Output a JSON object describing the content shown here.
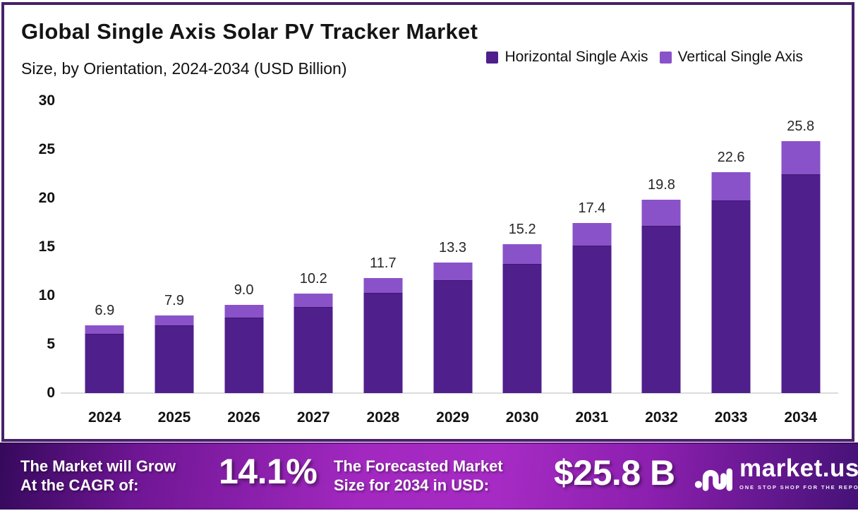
{
  "header": {
    "title": "Global Single Axis Solar PV Tracker Market",
    "subtitle": "Size, by Orientation, 2024-2034 (USD Billion)"
  },
  "legend": {
    "items": [
      {
        "label": "Horizontal Single Axis",
        "color": "#4F1F8C"
      },
      {
        "label": "Vertical Single Axis",
        "color": "#8A52C8"
      }
    ]
  },
  "chart_data": {
    "type": "bar",
    "stacked": true,
    "title": "Global Single Axis Solar PV Tracker Market",
    "subtitle": "Size, by Orientation, 2024-2034 (USD Billion)",
    "categories": [
      "2024",
      "2025",
      "2026",
      "2027",
      "2028",
      "2029",
      "2030",
      "2031",
      "2032",
      "2033",
      "2034"
    ],
    "series": [
      {
        "name": "Horizontal Single Axis",
        "color": "#4F1F8C",
        "values": [
          6.0,
          6.9,
          7.7,
          8.8,
          10.2,
          11.5,
          13.2,
          15.1,
          17.1,
          19.7,
          22.4
        ]
      },
      {
        "name": "Vertical Single Axis",
        "color": "#8A52C8",
        "values": [
          0.9,
          1.0,
          1.3,
          1.4,
          1.5,
          1.8,
          2.0,
          2.3,
          2.7,
          2.9,
          3.4
        ]
      }
    ],
    "totals": [
      6.9,
      7.9,
      9.0,
      10.2,
      11.7,
      13.3,
      15.2,
      17.4,
      19.8,
      22.6,
      25.8
    ],
    "total_labels": [
      "6.9",
      "7.9",
      "9.0",
      "10.2",
      "11.7",
      "13.3",
      "15.2",
      "17.4",
      "19.8",
      "22.6",
      "25.8"
    ],
    "yticks": [
      0,
      5,
      10,
      15,
      20,
      25,
      30
    ],
    "ylim": [
      0,
      30
    ],
    "xlabel": "",
    "ylabel": "",
    "grid": false,
    "legend_position": "top-right"
  },
  "banner": {
    "cagr_label_line1": "The Market will Grow",
    "cagr_label_line2": "At the CAGR of:",
    "cagr_value": "14.1%",
    "forecast_label_line1": "The Forecasted Market",
    "forecast_label_line2": "Size for 2034 in USD:",
    "forecast_value": "$25.8 B",
    "logo_text": "market.us",
    "logo_tagline": "ONE STOP SHOP FOR THE REPORTS"
  },
  "colors": {
    "card_border": "#472069",
    "bar_dark": "#4F1F8C",
    "bar_light": "#8A52C8",
    "banner_center": "#A62BC4",
    "banner_edge": "#3D0D66",
    "axis_line": "#DCDCDC",
    "text_dark": "#141414",
    "banner_text": "#FFFFFF"
  }
}
